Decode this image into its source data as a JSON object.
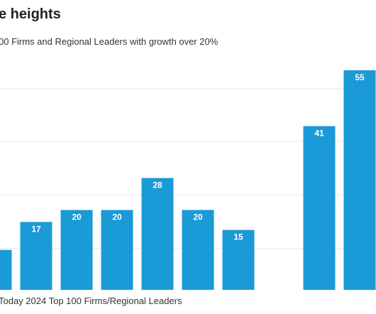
{
  "title": "e heights",
  "subtitle": "00 Firms and Regional Leaders with growth over 20%",
  "source": "Today 2024 Top 100 Firms/Regional Leaders",
  "colors": {
    "bar": "#1a9ad6",
    "grid": "#e5e5e5",
    "label": "#ffffff"
  },
  "chart_data": {
    "type": "bar",
    "categories": [
      "",
      "",
      "",
      "",
      "",
      "",
      "",
      "",
      "",
      ""
    ],
    "values": [
      10,
      17,
      20,
      20,
      28,
      20,
      15,
      null,
      41,
      55
    ],
    "data_labels": [
      "",
      "17",
      "20",
      "20",
      "28",
      "20",
      "15",
      "",
      "41",
      "55"
    ],
    "title": "e heights",
    "xlabel": "",
    "ylabel": "",
    "ylim": [
      0,
      58
    ],
    "grid": true,
    "legend": "none"
  }
}
